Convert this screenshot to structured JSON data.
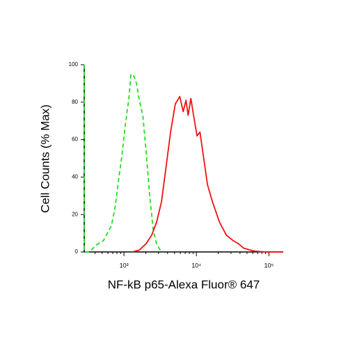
{
  "chart_data": {
    "type": "line",
    "xlabel": "NF-kB p65-Alexa Fluor® 647",
    "ylabel": "Cell Counts (% Max)",
    "xscale": "log",
    "xlim": [
      283,
      158000
    ],
    "ylim": [
      0,
      100
    ],
    "xticks": [
      {
        "value": 1000,
        "label": "10³"
      },
      {
        "value": 10000,
        "label": "10⁴"
      },
      {
        "value": 100000,
        "label": "10⁵"
      }
    ],
    "xminorticks": [
      400,
      500,
      600,
      700,
      800,
      900,
      2000,
      3000,
      4000,
      5000,
      6000,
      7000,
      8000,
      9000,
      20000,
      30000,
      40000,
      50000,
      60000,
      70000,
      80000,
      90000
    ],
    "yticks": [
      0,
      20,
      40,
      60,
      80,
      100
    ],
    "series": [
      {
        "color": "#22dd22",
        "dashed": true,
        "x": [
          283,
          283,
          330,
          427,
          520,
          670,
          750,
          840,
          935,
          1045,
          1170,
          1250,
          1370,
          1490,
          1630,
          1820,
          2030,
          2270,
          2530,
          2830,
          3300
        ],
        "values": [
          100,
          0,
          0,
          4,
          6,
          14,
          23,
          38,
          51,
          68,
          82,
          95,
          94,
          90,
          81,
          73,
          53,
          30,
          12,
          4,
          0
        ]
      },
      {
        "color": "#ee1111",
        "dashed": false,
        "x": [
          1300,
          1630,
          2030,
          2420,
          2830,
          3300,
          3770,
          4400,
          5100,
          5890,
          6570,
          7170,
          7680,
          8370,
          9130,
          10200,
          11200,
          12500,
          14200,
          16600,
          20800,
          25900,
          32300,
          37700,
          45000,
          62600,
          87500,
          158000
        ],
        "values": [
          0,
          1,
          4.5,
          9,
          16,
          27,
          44,
          64,
          79,
          83,
          75,
          81,
          73,
          82,
          73,
          62,
          64,
          51,
          36,
          27,
          16,
          9,
          6,
          4.5,
          2,
          0.5,
          0,
          0
        ]
      }
    ]
  }
}
